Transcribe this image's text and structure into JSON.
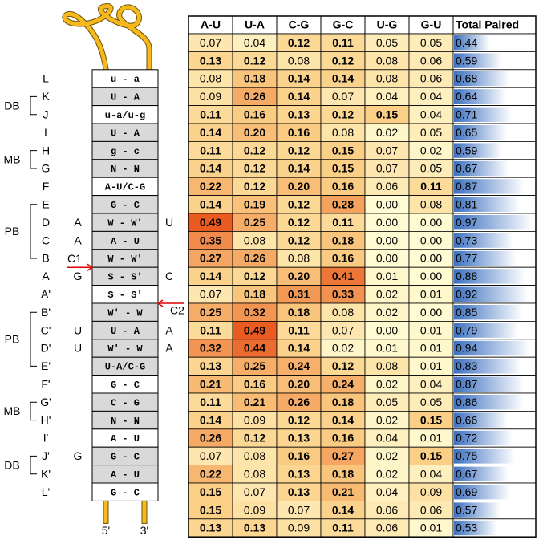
{
  "table": {
    "header": [
      "A-U",
      "U-A",
      "C-G",
      "G-C",
      "U-G",
      "G-U",
      "Total Paired"
    ],
    "rows": [
      [
        "0.07",
        "0.04",
        "0.12",
        "0.11",
        "0.05",
        "0.05",
        "0.44"
      ],
      [
        "0.13",
        "0.12",
        "0.08",
        "0.12",
        "0.08",
        "0.06",
        "0.59"
      ],
      [
        "0.08",
        "0.18",
        "0.14",
        "0.14",
        "0.08",
        "0.06",
        "0.68"
      ],
      [
        "0.09",
        "0.26",
        "0.14",
        "0.07",
        "0.04",
        "0.04",
        "0.64"
      ],
      [
        "0.11",
        "0.16",
        "0.13",
        "0.12",
        "0.15",
        "0.04",
        "0.71"
      ],
      [
        "0.14",
        "0.20",
        "0.16",
        "0.08",
        "0.02",
        "0.05",
        "0.65"
      ],
      [
        "0.11",
        "0.12",
        "0.12",
        "0.15",
        "0.07",
        "0.02",
        "0.59"
      ],
      [
        "0.14",
        "0.12",
        "0.14",
        "0.15",
        "0.07",
        "0.05",
        "0.67"
      ],
      [
        "0.22",
        "0.12",
        "0.20",
        "0.16",
        "0.06",
        "0.11",
        "0.87"
      ],
      [
        "0.14",
        "0.19",
        "0.12",
        "0.28",
        "0.00",
        "0.08",
        "0.81"
      ],
      [
        "0.49",
        "0.25",
        "0.12",
        "0.11",
        "0.00",
        "0.00",
        "0.97"
      ],
      [
        "0.35",
        "0.08",
        "0.12",
        "0.18",
        "0.00",
        "0.00",
        "0.73"
      ],
      [
        "0.27",
        "0.26",
        "0.08",
        "0.16",
        "0.00",
        "0.00",
        "0.77"
      ],
      [
        "0.14",
        "0.12",
        "0.20",
        "0.41",
        "0.01",
        "0.00",
        "0.88"
      ],
      [
        "0.07",
        "0.18",
        "0.31",
        "0.33",
        "0.02",
        "0.01",
        "0.92"
      ],
      [
        "0.25",
        "0.32",
        "0.18",
        "0.08",
        "0.02",
        "0.00",
        "0.85"
      ],
      [
        "0.11",
        "0.49",
        "0.11",
        "0.07",
        "0.00",
        "0.01",
        "0.79"
      ],
      [
        "0.32",
        "0.44",
        "0.14",
        "0.02",
        "0.01",
        "0.01",
        "0.94"
      ],
      [
        "0.13",
        "0.25",
        "0.24",
        "0.12",
        "0.08",
        "0.01",
        "0.83"
      ],
      [
        "0.21",
        "0.16",
        "0.20",
        "0.24",
        "0.02",
        "0.04",
        "0.87"
      ],
      [
        "0.11",
        "0.21",
        "0.26",
        "0.18",
        "0.05",
        "0.05",
        "0.86"
      ],
      [
        "0.14",
        "0.09",
        "0.12",
        "0.14",
        "0.02",
        "0.15",
        "0.66"
      ],
      [
        "0.26",
        "0.12",
        "0.13",
        "0.16",
        "0.04",
        "0.01",
        "0.72"
      ],
      [
        "0.07",
        "0.08",
        "0.16",
        "0.27",
        "0.02",
        "0.15",
        "0.75"
      ],
      [
        "0.22",
        "0.08",
        "0.13",
        "0.18",
        "0.02",
        "0.04",
        "0.67"
      ],
      [
        "0.15",
        "0.07",
        "0.13",
        "0.21",
        "0.04",
        "0.09",
        "0.69"
      ],
      [
        "0.15",
        "0.09",
        "0.07",
        "0.14",
        "0.06",
        "0.06",
        "0.57"
      ],
      [
        "0.13",
        "0.13",
        "0.09",
        "0.11",
        "0.06",
        "0.01",
        "0.53"
      ]
    ],
    "bold_min": 0.11,
    "heat_scale": [
      {
        "value": 0,
        "color": "#fffbd2"
      },
      {
        "value": 0.15,
        "color": "#fbcf86"
      },
      {
        "value": 0.5,
        "color": "#e8581e"
      }
    ],
    "total_bar_color": "#3c70c0"
  },
  "diagram": {
    "rows": [
      {
        "label": "L",
        "pair": "u - a",
        "shaded": false
      },
      {
        "label": "K",
        "pair": "U - A",
        "shaded": true
      },
      {
        "label": "J",
        "pair": "u-a/u-g",
        "shaded": false
      },
      {
        "label": "I",
        "pair": "U - A",
        "shaded": true
      },
      {
        "label": "H",
        "pair": "g - c",
        "shaded": true
      },
      {
        "label": "G",
        "pair": "N - N",
        "shaded": true
      },
      {
        "label": "F",
        "pair": "A-U/C-G",
        "shaded": false
      },
      {
        "label": "E",
        "pair": "G - C",
        "shaded": true
      },
      {
        "label": "D",
        "pair": "W - W'",
        "shaded": true,
        "left": "A",
        "right": "U"
      },
      {
        "label": "C",
        "pair": "A - U",
        "shaded": true,
        "left": "A"
      },
      {
        "label": "B",
        "pair": "W - W'",
        "shaded": true
      },
      {
        "label": "A",
        "pair": "S - S'",
        "shaded": true,
        "left": "G",
        "right": "C"
      },
      {
        "label": "A'",
        "pair": "S - S'",
        "shaded": false
      },
      {
        "label": "B'",
        "pair": "W' - W",
        "shaded": true
      },
      {
        "label": "C'",
        "pair": "U - A",
        "shaded": true,
        "left": "U",
        "right": "A"
      },
      {
        "label": "D'",
        "pair": "W' - W",
        "shaded": true,
        "left": "U",
        "right": "A"
      },
      {
        "label": "E'",
        "pair": "U-A/C-G",
        "shaded": true
      },
      {
        "label": "F'",
        "pair": "G - C",
        "shaded": false
      },
      {
        "label": "G'",
        "pair": "C - G",
        "shaded": true
      },
      {
        "label": "H'",
        "pair": "N - N",
        "shaded": true
      },
      {
        "label": "I'",
        "pair": "A - U",
        "shaded": false
      },
      {
        "label": "J'",
        "pair": "G - C",
        "shaded": true,
        "left": "G"
      },
      {
        "label": "K'",
        "pair": "A - U",
        "shaded": true
      },
      {
        "label": "L'",
        "pair": "G - C",
        "shaded": false
      }
    ],
    "groups": [
      {
        "label": "DB",
        "rows": [
          "K",
          "J"
        ]
      },
      {
        "label": "MB",
        "rows": [
          "H",
          "G"
        ]
      },
      {
        "label": "PB",
        "rows": [
          "E",
          "B"
        ]
      },
      {
        "label": "PB",
        "rows": [
          "B'",
          "E'"
        ]
      },
      {
        "label": "MB",
        "rows": [
          "G'",
          "H'"
        ]
      },
      {
        "label": "DB",
        "rows": [
          "J'",
          "K'"
        ]
      }
    ],
    "arrows": [
      {
        "label": "C1",
        "after": "B"
      },
      {
        "label": "C2",
        "after": "A'"
      }
    ],
    "ends": [
      "5'",
      "3'"
    ]
  }
}
